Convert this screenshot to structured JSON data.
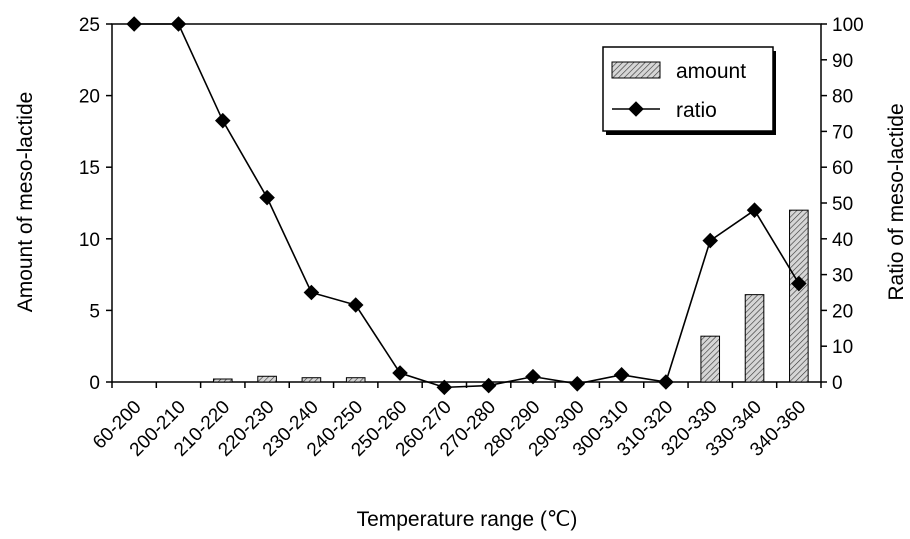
{
  "chart_data": {
    "type": "bar",
    "categories": [
      "60-200",
      "200-210",
      "210-220",
      "220-230",
      "230-240",
      "240-250",
      "250-260",
      "260-270",
      "270-280",
      "280-290",
      "290-300",
      "300-310",
      "310-320",
      "320-330",
      "330-340",
      "340-360"
    ],
    "series": [
      {
        "name": "amount",
        "type": "bar",
        "axis": "left",
        "values": [
          0,
          0,
          0.1,
          0.4,
          0.3,
          0.3,
          0,
          0,
          0,
          0,
          0,
          0,
          0,
          3.2,
          6.1,
          12.0
        ]
      },
      {
        "name": "ratio",
        "type": "line",
        "axis": "right",
        "values": [
          100,
          100,
          73,
          51.5,
          25,
          21.5,
          2.5,
          -1.5,
          -1,
          1.5,
          -0.5,
          2,
          0,
          39.5,
          48,
          27.5
        ]
      }
    ],
    "xlabel": "Temperature range (℃)",
    "ylabel_left": "Amount of meso-lactide",
    "ylabel_right": "Ratio of meso-lactide",
    "ylim_left": [
      0,
      25
    ],
    "yticks_left": [
      0,
      5,
      10,
      15,
      20,
      25
    ],
    "ylim_right": [
      0,
      100
    ],
    "yticks_right": [
      0,
      10,
      20,
      30,
      40,
      50,
      60,
      70,
      80,
      90,
      100
    ],
    "legend_position": "top-right",
    "grid": false,
    "colors": {
      "bar_fill": "#c8c8c8",
      "bar_hatch": "#000000",
      "line": "#000000",
      "marker": "#000000"
    }
  }
}
